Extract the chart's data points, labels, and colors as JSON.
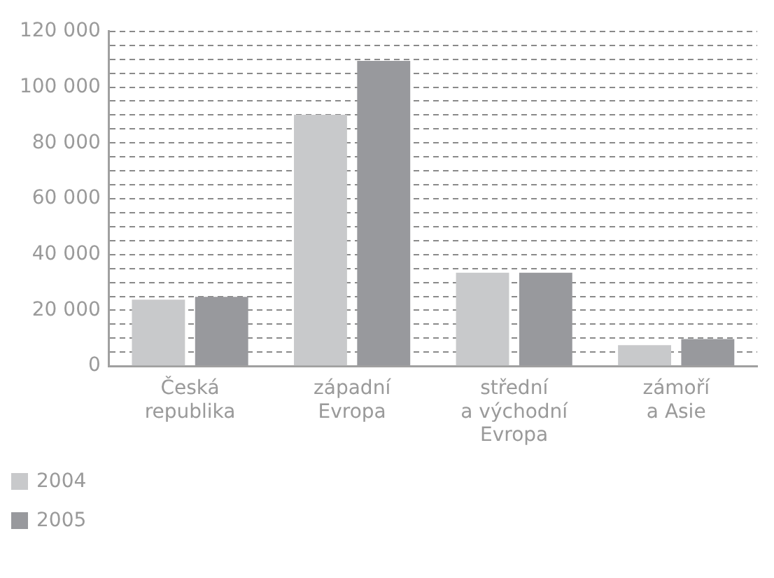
{
  "chart_data": {
    "type": "bar",
    "categories": [
      "Česká\nrepublika",
      "západní\nEvropa",
      "střední\na východní\nEvropa",
      "zámoří\na Asie"
    ],
    "series": [
      {
        "name": "2004",
        "color": "#c8c9cb",
        "values": [
          23800,
          90100,
          33500,
          7500
        ]
      },
      {
        "name": "2005",
        "color": "#98999d",
        "values": [
          24800,
          109400,
          33500,
          9700
        ]
      }
    ],
    "ylim": [
      0,
      120000
    ],
    "yticks": [
      {
        "value": 0,
        "label": "0"
      },
      {
        "value": 5000,
        "label": null
      },
      {
        "value": 10000,
        "label": null
      },
      {
        "value": 15000,
        "label": null
      },
      {
        "value": 20000,
        "label": "20 000"
      },
      {
        "value": 25000,
        "label": null
      },
      {
        "value": 30000,
        "label": null
      },
      {
        "value": 35000,
        "label": null
      },
      {
        "value": 40000,
        "label": "40 000"
      },
      {
        "value": 45000,
        "label": null
      },
      {
        "value": 50000,
        "label": null
      },
      {
        "value": 55000,
        "label": null
      },
      {
        "value": 60000,
        "label": "60 000"
      },
      {
        "value": 65000,
        "label": null
      },
      {
        "value": 70000,
        "label": null
      },
      {
        "value": 75000,
        "label": null
      },
      {
        "value": 80000,
        "label": "80 000"
      },
      {
        "value": 85000,
        "label": null
      },
      {
        "value": 90000,
        "label": null
      },
      {
        "value": 95000,
        "label": null
      },
      {
        "value": 100000,
        "label": "100 000"
      },
      {
        "value": 105000,
        "label": null
      },
      {
        "value": 110000,
        "label": null
      },
      {
        "value": 115000,
        "label": null
      },
      {
        "value": 120000,
        "label": "120 000"
      }
    ],
    "grid": "y",
    "legend": "bottom left"
  }
}
